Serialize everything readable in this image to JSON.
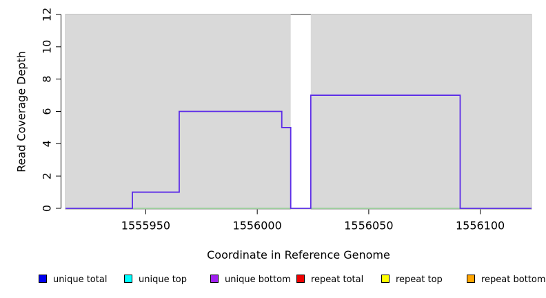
{
  "chart_data": {
    "type": "area",
    "title": "",
    "xlabel": "Coordinate in Reference Genome",
    "ylabel": "Read Coverage Depth",
    "xlim": [
      1555914,
      1556123
    ],
    "ylim": [
      0,
      12
    ],
    "x_ticks": [
      1555950,
      1556000,
      1556050,
      1556100
    ],
    "y_ticks": [
      0,
      2,
      4,
      6,
      8,
      10,
      12
    ],
    "grid": false,
    "panel_bg": "#d9d9d9",
    "panel_border": "#c4c4c4",
    "gap_region": {
      "x_start": 1556015,
      "x_end": 1556024,
      "fill": "#ffffff",
      "top_line_color": "#999999",
      "top_line_y": 12
    },
    "series": [
      {
        "name": "zero baseline",
        "color": "#7ec87e",
        "line_width": 1.2,
        "steps": [
          {
            "x_start": 1555914,
            "x_end": 1556123,
            "y": 0
          }
        ]
      },
      {
        "name": "unique coverage",
        "color": "#5b2be8",
        "line_width": 1.8,
        "steps": [
          {
            "x_start": 1555914,
            "x_end": 1555944,
            "y": 0
          },
          {
            "x_start": 1555944,
            "x_end": 1555965,
            "y": 1
          },
          {
            "x_start": 1555965,
            "x_end": 1556011,
            "y": 6
          },
          {
            "x_start": 1556011,
            "x_end": 1556015,
            "y": 5
          },
          {
            "x_start": 1556015,
            "x_end": 1556024,
            "y": 0
          },
          {
            "x_start": 1556024,
            "x_end": 1556091,
            "y": 7
          },
          {
            "x_start": 1556091,
            "x_end": 1556123,
            "y": 0
          }
        ]
      }
    ],
    "legend_position": "bottom",
    "legend": [
      {
        "label": "unique total",
        "color": "#0000ee"
      },
      {
        "label": "unique top",
        "color": "#00ffff"
      },
      {
        "label": "unique bottom",
        "color": "#a020f0"
      },
      {
        "label": "repeat total",
        "color": "#ee0000"
      },
      {
        "label": "repeat top",
        "color": "#ffff00"
      },
      {
        "label": "repeat bottom",
        "color": "#ffa500"
      }
    ]
  }
}
